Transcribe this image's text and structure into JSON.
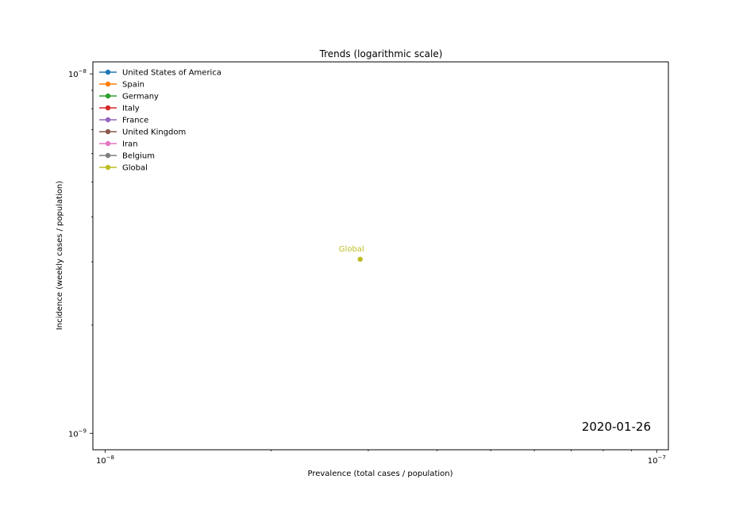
{
  "chart_data": {
    "type": "line",
    "title": "Trends (logarithmic scale)",
    "xlabel": "Prevalence (total cases / population)",
    "ylabel": "Incidence (weekly cases / population)",
    "x_scale": "log",
    "y_scale": "log",
    "xlim": [
      9.5e-09,
      1.05e-07
    ],
    "ylim": [
      9e-10,
      1.08e-08
    ],
    "x_ticks": [
      {
        "value": 1e-08,
        "label": "10",
        "exp": "−8"
      },
      {
        "value": 1e-07,
        "label": "10",
        "exp": "−7"
      }
    ],
    "y_ticks": [
      {
        "value": 1e-08,
        "label": "10",
        "exp": "−8"
      },
      {
        "value": 1e-09,
        "label": "10",
        "exp": "−9"
      }
    ],
    "date_label": "2020-01-26",
    "legend_position": "top-left",
    "series": [
      {
        "name": "United States of America",
        "color": "#1f77b4",
        "points": []
      },
      {
        "name": "Spain",
        "color": "#ff7f0e",
        "points": []
      },
      {
        "name": "Germany",
        "color": "#2ca02c",
        "points": []
      },
      {
        "name": "Italy",
        "color": "#d62728",
        "points": []
      },
      {
        "name": "France",
        "color": "#9467bd",
        "points": []
      },
      {
        "name": "United Kingdom",
        "color": "#8c564b",
        "points": []
      },
      {
        "name": "Iran",
        "color": "#e377c2",
        "points": []
      },
      {
        "name": "Belgium",
        "color": "#7f7f7f",
        "points": []
      },
      {
        "name": "Global",
        "color": "#bcbd22",
        "points": [
          {
            "x": 2.9e-08,
            "y": 3.05e-09
          }
        ],
        "annotation": "Global"
      }
    ]
  }
}
